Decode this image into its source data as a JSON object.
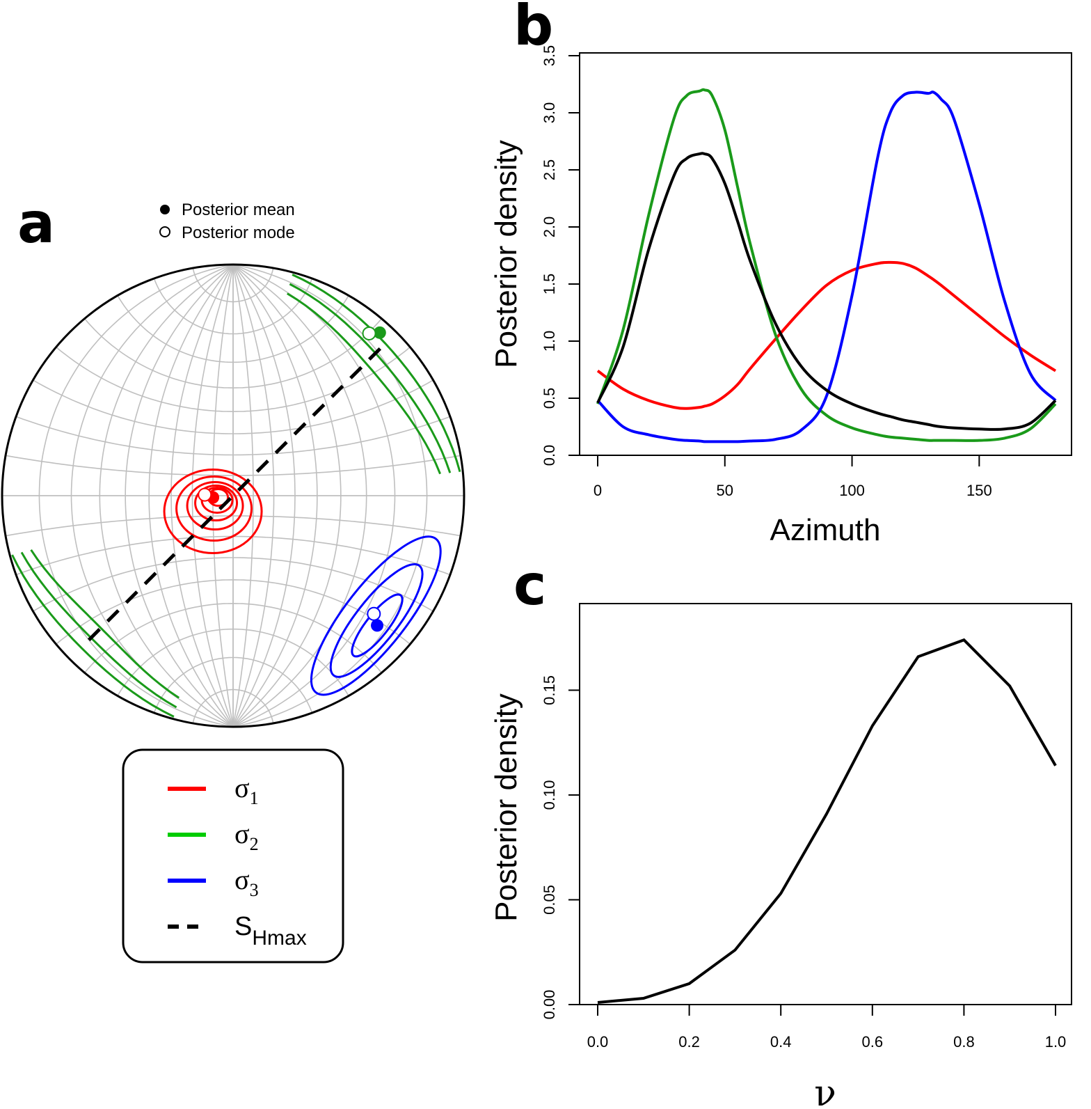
{
  "panels": {
    "a": {
      "letter": "a",
      "marker_legend": {
        "mean": "Posterior mean",
        "mode": "Posterior mode"
      },
      "line_legend": [
        {
          "symbol": "σ",
          "sub": "1",
          "color": "#ff0000",
          "dash": false
        },
        {
          "symbol": "σ",
          "sub": "2",
          "color": "#00cc00",
          "dash": false
        },
        {
          "symbol": "σ",
          "sub": "3",
          "color": "#0000ff",
          "dash": false
        },
        {
          "symbol": "S",
          "sub": "Hmax",
          "color": "#000000",
          "dash": true
        }
      ]
    },
    "b": {
      "letter": "b"
    },
    "c": {
      "letter": "c"
    }
  },
  "colors": {
    "sigma1": "#ff0000",
    "sigma2": "#1a9a1a",
    "sigma3": "#0000ff",
    "combined": "#000000",
    "grid": "#bfbfbf"
  },
  "chart_data": [
    {
      "panel": "a",
      "type": "scatter",
      "description_type": "stereonet",
      "series": [
        {
          "name": "σ1",
          "mean": {
            "azimuth": 265,
            "plunge": 80
          },
          "mode": {
            "azimuth": 272,
            "plunge": 76
          }
        },
        {
          "name": "σ2",
          "mean": {
            "azimuth": 42,
            "plunge": 3
          },
          "mode": {
            "azimuth": 40,
            "plunge": 5
          }
        },
        {
          "name": "σ3",
          "mean": {
            "azimuth": 132,
            "plunge": 10
          },
          "mode": {
            "azimuth": 130,
            "plunge": 13
          }
        }
      ],
      "shmax_azimuth": 45
    },
    {
      "panel": "b",
      "type": "line",
      "xlabel": "Azimuth",
      "ylabel": "Posterior density",
      "xlim": [
        0,
        180
      ],
      "ylim": [
        0,
        3.5
      ],
      "xticks": [
        0,
        50,
        100,
        150
      ],
      "yticks": [
        0.0,
        0.5,
        1.0,
        1.5,
        2.0,
        2.5,
        3.0,
        3.5
      ],
      "x": [
        0,
        10,
        20,
        30,
        35,
        40,
        42,
        45,
        50,
        55,
        60,
        70,
        80,
        90,
        100,
        110,
        115,
        120,
        125,
        130,
        132,
        135,
        140,
        150,
        160,
        170,
        180
      ],
      "series": [
        {
          "name": "σ1",
          "color": "#ff0000",
          "values": [
            0.74,
            0.58,
            0.48,
            0.42,
            0.41,
            0.42,
            0.43,
            0.45,
            0.52,
            0.62,
            0.76,
            1.02,
            1.27,
            1.49,
            1.62,
            1.68,
            1.69,
            1.68,
            1.64,
            1.57,
            1.54,
            1.49,
            1.4,
            1.22,
            1.04,
            0.88,
            0.74
          ]
        },
        {
          "name": "σ2",
          "color": "#1a9a1a",
          "values": [
            0.45,
            1.1,
            2.1,
            2.95,
            3.15,
            3.19,
            3.2,
            3.15,
            2.85,
            2.35,
            1.85,
            1.05,
            0.58,
            0.35,
            0.24,
            0.18,
            0.16,
            0.15,
            0.14,
            0.13,
            0.13,
            0.13,
            0.13,
            0.13,
            0.15,
            0.23,
            0.45
          ]
        },
        {
          "name": "σ3",
          "color": "#0000ff",
          "values": [
            0.48,
            0.25,
            0.18,
            0.14,
            0.13,
            0.125,
            0.12,
            0.12,
            0.12,
            0.12,
            0.125,
            0.14,
            0.22,
            0.52,
            1.4,
            2.6,
            3.0,
            3.15,
            3.18,
            3.17,
            3.18,
            3.12,
            2.95,
            2.2,
            1.35,
            0.72,
            0.48
          ]
        },
        {
          "name": "SHmax",
          "color": "#000000",
          "values": [
            0.46,
            0.95,
            1.8,
            2.45,
            2.6,
            2.64,
            2.64,
            2.6,
            2.38,
            2.05,
            1.7,
            1.15,
            0.78,
            0.57,
            0.45,
            0.37,
            0.34,
            0.31,
            0.29,
            0.27,
            0.26,
            0.25,
            0.24,
            0.23,
            0.23,
            0.28,
            0.48
          ]
        }
      ]
    },
    {
      "panel": "c",
      "type": "line",
      "xlabel": "ν",
      "ylabel": "Posterior density",
      "xlim": [
        0,
        1
      ],
      "ylim": [
        0,
        0.19
      ],
      "xticks": [
        "0.0",
        "0.2",
        "0.4",
        "0.6",
        "0.8",
        "1.0"
      ],
      "yticks": [
        "0.00",
        "0.05",
        "0.10",
        "0.15"
      ],
      "x": [
        0.0,
        0.1,
        0.2,
        0.3,
        0.4,
        0.5,
        0.6,
        0.7,
        0.8,
        0.9,
        1.0
      ],
      "series": [
        {
          "color": "#000000",
          "values": [
            0.001,
            0.003,
            0.01,
            0.026,
            0.053,
            0.091,
            0.133,
            0.166,
            0.174,
            0.152,
            0.114
          ]
        }
      ]
    }
  ]
}
